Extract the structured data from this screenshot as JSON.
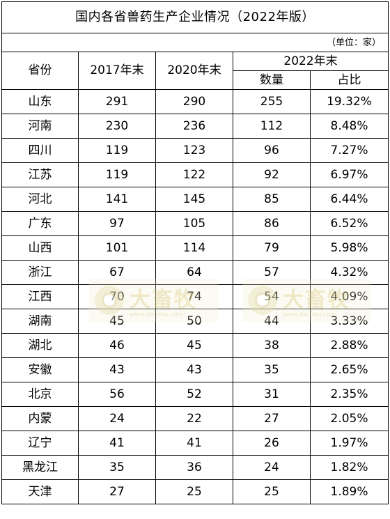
{
  "title": "国内各省兽药生产企业情况（2022年版）",
  "unit": "（单位：家）",
  "headers": {
    "province": "省份",
    "y2017": "2017年末",
    "y2020": "2020年末",
    "y2022": "2022年末",
    "count": "数量",
    "share": "占比"
  },
  "rows": [
    {
      "province": "山东",
      "y2017": "291",
      "y2020": "290",
      "count": "255",
      "share": "19.32%"
    },
    {
      "province": "河南",
      "y2017": "230",
      "y2020": "236",
      "count": "112",
      "share": "8.48%"
    },
    {
      "province": "四川",
      "y2017": "119",
      "y2020": "123",
      "count": "96",
      "share": "7.27%"
    },
    {
      "province": "江苏",
      "y2017": "119",
      "y2020": "122",
      "count": "92",
      "share": "6.97%"
    },
    {
      "province": "河北",
      "y2017": "141",
      "y2020": "145",
      "count": "85",
      "share": "6.44%"
    },
    {
      "province": "广东",
      "y2017": "97",
      "y2020": "105",
      "count": "86",
      "share": "6.52%"
    },
    {
      "province": "山西",
      "y2017": "101",
      "y2020": "114",
      "count": "79",
      "share": "5.98%"
    },
    {
      "province": "浙江",
      "y2017": "67",
      "y2020": "64",
      "count": "57",
      "share": "4.32%"
    },
    {
      "province": "江西",
      "y2017": "70",
      "y2020": "74",
      "count": "54",
      "share": "4.09%"
    },
    {
      "province": "湖南",
      "y2017": "45",
      "y2020": "50",
      "count": "44",
      "share": "3.33%"
    },
    {
      "province": "湖北",
      "y2017": "46",
      "y2020": "45",
      "count": "38",
      "share": "2.88%"
    },
    {
      "province": "安徽",
      "y2017": "43",
      "y2020": "43",
      "count": "35",
      "share": "2.65%"
    },
    {
      "province": "北京",
      "y2017": "56",
      "y2020": "52",
      "count": "31",
      "share": "2.35%"
    },
    {
      "province": "内蒙",
      "y2017": "24",
      "y2020": "22",
      "count": "27",
      "share": "2.05%"
    },
    {
      "province": "辽宁",
      "y2017": "41",
      "y2020": "41",
      "count": "26",
      "share": "1.97%"
    },
    {
      "province": "黑龙江",
      "y2017": "35",
      "y2020": "36",
      "count": "24",
      "share": "1.82%"
    },
    {
      "province": "天津",
      "y2017": "27",
      "y2020": "25",
      "count": "25",
      "share": "1.89%"
    }
  ],
  "watermark": {
    "name": "大畜牧",
    "url": "www.dxumu.com",
    "icon": "logo-icon"
  }
}
